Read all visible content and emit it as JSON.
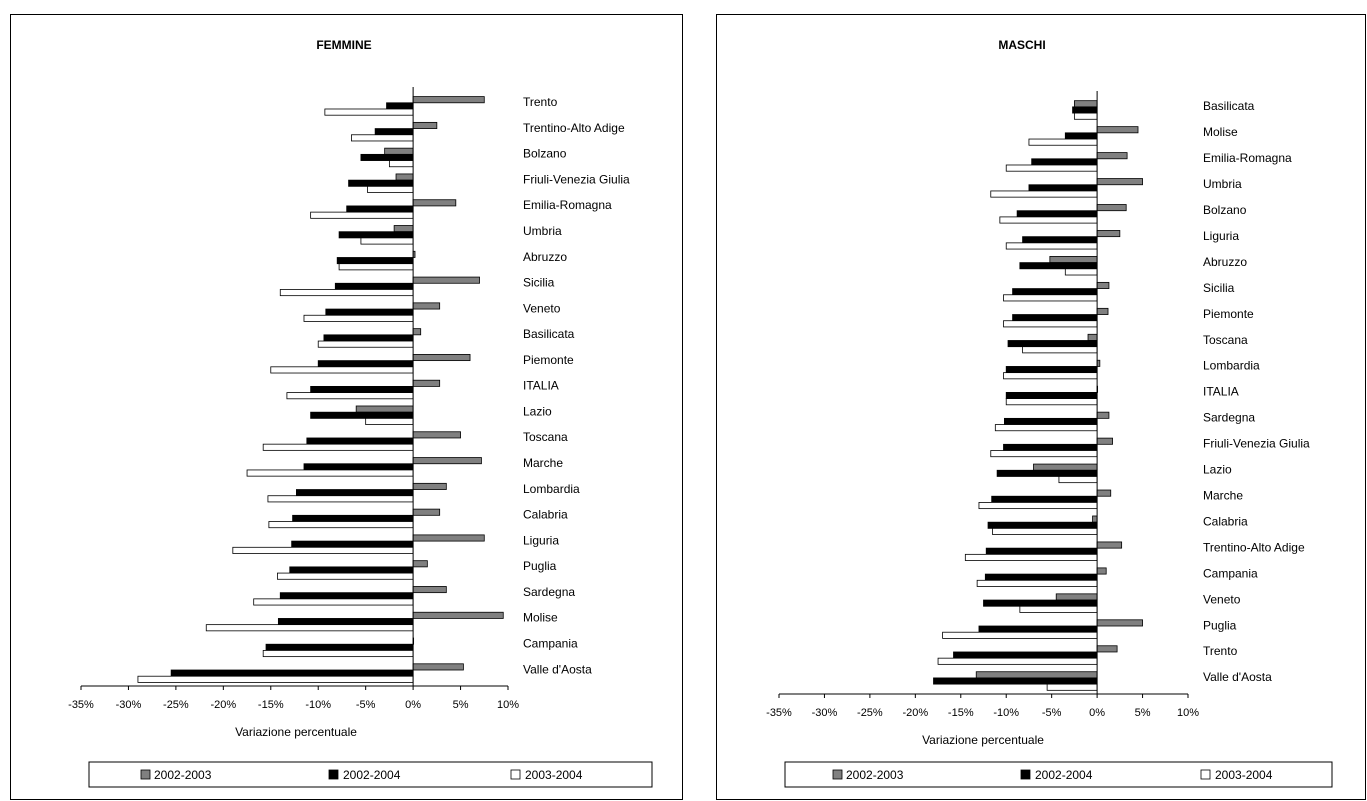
{
  "colors": {
    "s1": "#808080",
    "s2": "#000000",
    "s3": "#ffffff",
    "stroke": "#000000"
  },
  "legend": [
    "2002-2003",
    "2002-2004",
    "2003-2004"
  ],
  "chart_data": [
    {
      "type": "bar",
      "orientation": "horizontal",
      "title": "FEMMINE",
      "xlabel": "Variazione percentuale",
      "xlim": [
        -35,
        10
      ],
      "xticks": [
        "-35%",
        "-30%",
        "-25%",
        "-20%",
        "-15%",
        "-10%",
        "-5%",
        "0%",
        "5%",
        "10%"
      ],
      "legend_placement": "bottom",
      "categories": [
        "Trento",
        "Trentino-Alto Adige",
        "Bolzano",
        "Friuli-Venezia Giulia",
        "Emilia-Romagna",
        "Umbria",
        "Abruzzo",
        "Sicilia",
        "Veneto",
        "Basilicata",
        "Piemonte",
        "ITALIA",
        "Lazio",
        "Toscana",
        "Marche",
        "Lombardia",
        "Calabria",
        "Liguria",
        "Puglia",
        "Sardegna",
        "Molise",
        "Campania",
        "Valle d'Aosta"
      ],
      "series": [
        {
          "name": "2002-2003",
          "values": [
            7.5,
            2.5,
            -3,
            -1.8,
            4.5,
            -2,
            0.2,
            7,
            2.8,
            0.8,
            6,
            2.8,
            -6,
            5,
            7.2,
            3.5,
            2.8,
            7.5,
            1.5,
            3.5,
            9.5,
            0,
            5.3
          ]
        },
        {
          "name": "2002-2004",
          "values": [
            -2.8,
            -4,
            -5.5,
            -6.8,
            -7,
            -7.8,
            -8,
            -8.2,
            -9.2,
            -9.4,
            -10,
            -10.8,
            -10.8,
            -11.2,
            -11.5,
            -12.3,
            -12.7,
            -12.8,
            -13,
            -14,
            -14.2,
            -15.5,
            -25.5
          ]
        },
        {
          "name": "2003-2004",
          "values": [
            -9.3,
            -6.5,
            -2.5,
            -4.8,
            -10.8,
            -5.5,
            -7.8,
            -14,
            -11.5,
            -10,
            -15,
            -13.3,
            -5,
            -15.8,
            -17.5,
            -15.3,
            -15.2,
            -19,
            -14.3,
            -16.8,
            -21.8,
            -15.8,
            -29
          ]
        }
      ]
    },
    {
      "type": "bar",
      "orientation": "horizontal",
      "title": "MASCHI",
      "xlabel": "Variazione percentuale",
      "xlim": [
        -35,
        10
      ],
      "xticks": [
        "-35%",
        "-30%",
        "-25%",
        "-20%",
        "-15%",
        "-10%",
        "-5%",
        "0%",
        "5%",
        "10%"
      ],
      "legend_placement": "bottom",
      "categories": [
        "Basilicata",
        "Molise",
        "Emilia-Romagna",
        "Umbria",
        "Bolzano",
        "Liguria",
        "Abruzzo",
        "Sicilia",
        "Piemonte",
        "Toscana",
        "Lombardia",
        "ITALIA",
        "Sardegna",
        "Friuli-Venezia Giulia",
        "Lazio",
        "Marche",
        "Calabria",
        "Trentino-Alto Adige",
        "Campania",
        "Veneto",
        "Puglia",
        "Trento",
        "Valle d'Aosta"
      ],
      "series": [
        {
          "name": "2002-2003",
          "values": [
            -2.5,
            4.5,
            3.3,
            5,
            3.2,
            2.5,
            -5.2,
            1.3,
            1.2,
            -1,
            0.3,
            0,
            1.3,
            1.7,
            -7,
            1.5,
            -0.5,
            2.7,
            1,
            -4.5,
            5,
            2.2,
            -13.3
          ]
        },
        {
          "name": "2002-2004",
          "values": [
            -2.7,
            -3.5,
            -7.2,
            -7.5,
            -8.8,
            -8.2,
            -8.5,
            -9.3,
            -9.3,
            -9.8,
            -10,
            -10,
            -10.2,
            -10.3,
            -11,
            -11.6,
            -12,
            -12.2,
            -12.3,
            -12.5,
            -13,
            -15.8,
            -18
          ]
        },
        {
          "name": "2003-2004",
          "values": [
            -2.5,
            -7.5,
            -10,
            -11.7,
            -10.7,
            -10,
            -3.5,
            -10.3,
            -10.3,
            -8.2,
            -10.3,
            -10,
            -11.2,
            -11.7,
            -4.2,
            -13,
            -11.5,
            -14.5,
            -13.2,
            -8.5,
            -17,
            -17.5,
            -5.5
          ]
        }
      ]
    }
  ]
}
